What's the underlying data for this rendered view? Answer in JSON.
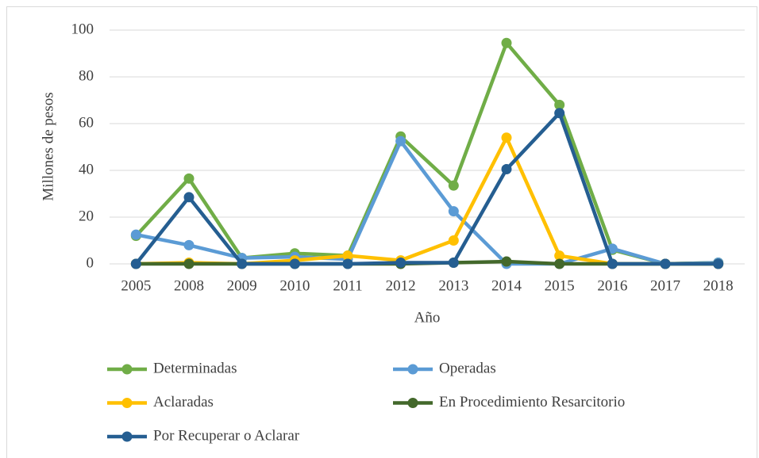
{
  "chart_data": {
    "type": "line",
    "x_label": "Año",
    "y_label": "Millones de pesos",
    "categories": [
      "2005",
      "2008",
      "2009",
      "2010",
      "2011",
      "2012",
      "2013",
      "2014",
      "2015",
      "2016",
      "2017",
      "2018"
    ],
    "series": [
      {
        "name": "Determinadas",
        "color": "#70ad47",
        "values": [
          12,
          36.5,
          2.5,
          4.5,
          3.5,
          54.5,
          33.5,
          94.5,
          68,
          6,
          0,
          0.5
        ]
      },
      {
        "name": "Operadas",
        "color": "#5b9bd5",
        "values": [
          12.5,
          8,
          2.5,
          3,
          2,
          52.5,
          22.5,
          0,
          0,
          6.5,
          0,
          0.5
        ]
      },
      {
        "name": "Aclaradas",
        "color": "#ffc000",
        "values": [
          0,
          0.5,
          0,
          1.5,
          3.5,
          1.5,
          10,
          54,
          3.5,
          0,
          0,
          0
        ]
      },
      {
        "name": "En Procedimiento Resarcitorio",
        "color": "#43682b",
        "values": [
          0,
          0,
          0,
          0,
          0,
          0,
          0.5,
          1,
          0,
          0,
          0,
          0
        ]
      },
      {
        "name": "Por Recuperar o Aclarar",
        "color": "#255e91",
        "values": [
          0,
          28.5,
          0,
          0,
          0,
          0.5,
          0.5,
          40.5,
          64.5,
          0,
          0,
          0
        ]
      }
    ],
    "ylim": [
      0,
      100
    ],
    "yticks": [
      0,
      20,
      40,
      60,
      80,
      100
    ],
    "grid": true,
    "legend": "bottom"
  }
}
